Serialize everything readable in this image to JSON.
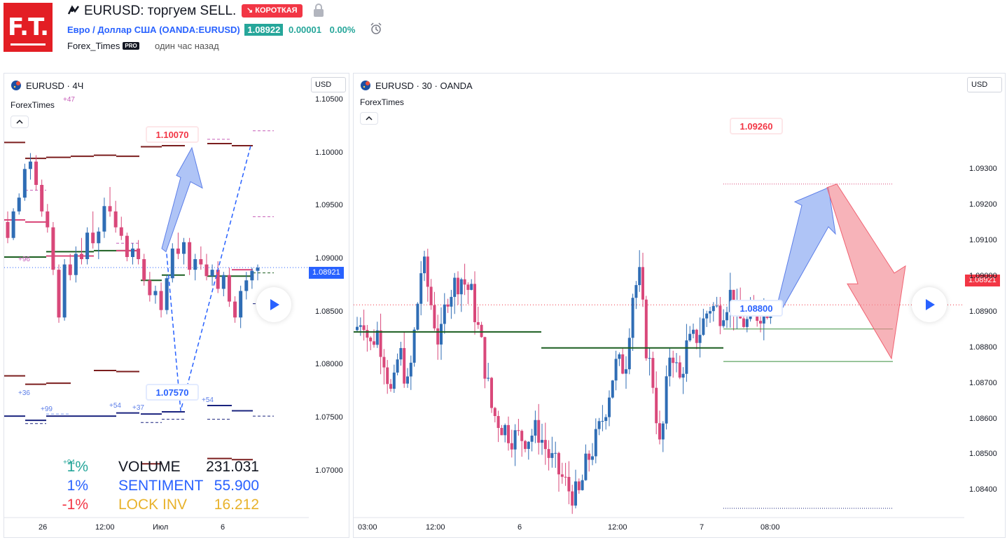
{
  "header": {
    "logo_text": "F.T.",
    "idea_title": "EURUSD: торгуем SELL.",
    "direction_badge": "↘ КОРОТКАЯ",
    "symbol_name": "Евро / Доллар США",
    "symbol_ticker": "(OANDA:EURUSD)",
    "price": "1.08922",
    "change": "0.00001",
    "change_pct": "0.00%",
    "author": "Forex_Times",
    "author_badge": "PRO",
    "published": "один час назад"
  },
  "colors": {
    "up": "#2f6db5",
    "down": "#d9487a",
    "accent_red": "#f23645",
    "accent_green": "#26a69a",
    "arrow_blue": "#7a9cf0",
    "arrow_red": "#f28b94"
  },
  "chart_data": [
    {
      "type": "candlestick",
      "title": "EURUSD · 4Ч",
      "author": "ForexTimes",
      "author_note": "+47",
      "currency_button": "USD",
      "ylim": [
        1.0655,
        1.1075
      ],
      "y_ticks": [
        "1.10500",
        "1.10000",
        "1.09500",
        "1.09000",
        "1.08500",
        "1.08000",
        "1.07500",
        "1.07000"
      ],
      "y_tick_values": [
        1.105,
        1.1,
        1.095,
        1.09,
        1.085,
        1.08,
        1.075,
        1.07
      ],
      "x_ticks": [
        "26",
        "12:00",
        "Июл",
        "6"
      ],
      "last_price": "1.08921",
      "last_price_value": 1.08921,
      "annotations": [
        {
          "label": "1.10070",
          "value": 1.1007,
          "kind": "target-high"
        },
        {
          "label": "1.07570",
          "value": 1.0757,
          "kind": "target-low"
        }
      ],
      "level_notes": [
        "+36",
        "+99",
        "+54",
        "+37",
        "+54",
        "+94",
        "+96"
      ],
      "stats": [
        {
          "pct": "1%",
          "name": "VOLUME",
          "value": "231.031",
          "color": "#26a69a",
          "name_color": "#131722"
        },
        {
          "pct": "1%",
          "name": "SENTIMENT",
          "value": "55.900",
          "color": "#2962ff",
          "name_color": "#2962ff"
        },
        {
          "pct": "-1%",
          "name": "LOCK INV",
          "value": "16.212",
          "color": "#f23645",
          "name_color": "#e8b22b"
        }
      ],
      "candles": [
        [
          1.0935,
          1.0945,
          1.0915,
          1.092
        ],
        [
          1.092,
          1.0948,
          1.0918,
          1.0945
        ],
        [
          1.0945,
          1.0962,
          1.0942,
          1.0958
        ],
        [
          1.0958,
          1.099,
          1.0955,
          1.0985
        ],
        [
          1.0985,
          1.1,
          1.0975,
          1.0992
        ],
        [
          1.0992,
          1.0998,
          1.0965,
          1.097
        ],
        [
          1.097,
          1.0975,
          1.094,
          1.0945
        ],
        [
          1.0945,
          1.0952,
          1.0925,
          1.093
        ],
        [
          1.093,
          1.0935,
          1.0885,
          1.089
        ],
        [
          1.089,
          1.0895,
          1.084,
          1.0845
        ],
        [
          1.0845,
          1.09,
          1.0842,
          1.0895
        ],
        [
          1.0895,
          1.0905,
          1.088,
          1.0885
        ],
        [
          1.0885,
          1.0912,
          1.0878,
          1.0905
        ],
        [
          1.0905,
          1.092,
          1.0895,
          1.09
        ],
        [
          1.09,
          1.093,
          1.0895,
          1.0925
        ],
        [
          1.0925,
          1.0945,
          1.091,
          1.0915
        ],
        [
          1.0915,
          1.093,
          1.09,
          1.0926
        ],
        [
          1.0926,
          1.0958,
          1.092,
          1.095
        ],
        [
          1.095,
          1.0968,
          1.094,
          1.0945
        ],
        [
          1.0945,
          1.0955,
          1.0925,
          1.093
        ],
        [
          1.093,
          1.094,
          1.0918,
          1.0922
        ],
        [
          1.0922,
          1.0925,
          1.0898,
          1.0902
        ],
        [
          1.0902,
          1.0915,
          1.0895,
          1.091
        ],
        [
          1.091,
          1.0918,
          1.0895,
          1.09
        ],
        [
          1.09,
          1.0905,
          1.0875,
          1.088
        ],
        [
          1.088,
          1.0888,
          1.086,
          1.0866
        ],
        [
          1.0866,
          1.0875,
          1.0858,
          1.087
        ],
        [
          1.087,
          1.0878,
          1.0845,
          1.0852
        ],
        [
          1.0852,
          1.0885,
          1.0848,
          1.0882
        ],
        [
          1.0882,
          1.0915,
          1.0878,
          1.091
        ],
        [
          1.091,
          1.0925,
          1.09,
          1.0905
        ],
        [
          1.0905,
          1.092,
          1.0895,
          1.0916
        ],
        [
          1.0916,
          1.092,
          1.0885,
          1.089
        ],
        [
          1.089,
          1.0905,
          1.088,
          1.09
        ],
        [
          1.09,
          1.0912,
          1.089,
          1.0895
        ],
        [
          1.0895,
          1.0905,
          1.088,
          1.0884
        ],
        [
          1.0884,
          1.0895,
          1.0875,
          1.089
        ],
        [
          1.089,
          1.0898,
          1.0868,
          1.0872
        ],
        [
          1.0872,
          1.0888,
          1.0865,
          1.0885
        ],
        [
          1.0885,
          1.0892,
          1.0855,
          1.086
        ],
        [
          1.086,
          1.0865,
          1.084,
          1.0845
        ],
        [
          1.0845,
          1.0875,
          1.0835,
          1.087
        ],
        [
          1.087,
          1.0888,
          1.0862,
          1.088
        ],
        [
          1.088,
          1.0892,
          1.0872,
          1.0889
        ],
        [
          1.0889,
          1.0895,
          1.088,
          1.0892
        ]
      ]
    },
    {
      "type": "candlestick",
      "title": "EURUSD · 30 · OANDA",
      "author": "ForexTimes",
      "currency_button": "USD",
      "ylim": [
        1.0832,
        1.0957
      ],
      "y_ticks": [
        "1.09300",
        "1.09200",
        "1.09100",
        "1.09000",
        "1.08900",
        "1.08800",
        "1.08700",
        "1.08600",
        "1.08500",
        "1.08400"
      ],
      "y_tick_values": [
        1.093,
        1.092,
        1.091,
        1.09,
        1.089,
        1.088,
        1.087,
        1.086,
        1.085,
        1.084
      ],
      "x_ticks": [
        "03:00",
        "12:00",
        "6",
        "12:00",
        "7",
        "08:00"
      ],
      "last_price": "1.08921",
      "last_price_value": 1.08921,
      "annotations": [
        {
          "label": "1.09260",
          "value": 1.0926,
          "kind": "target-high"
        },
        {
          "label": "1.08800",
          "value": 1.088,
          "kind": "target-mid"
        }
      ]
    }
  ]
}
